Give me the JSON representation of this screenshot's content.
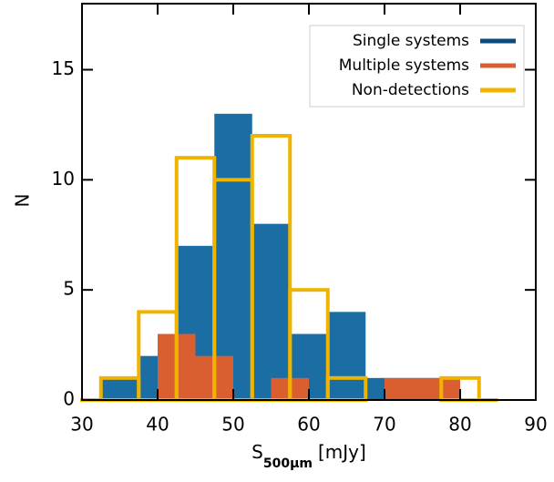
{
  "chart_data": {
    "type": "histogram",
    "xlabel": {
      "main": "S",
      "sub": "500μm",
      "unit": "[mJy]"
    },
    "ylabel": "N",
    "xlim": [
      30,
      90
    ],
    "ylim": [
      0,
      18
    ],
    "xticks": [
      30,
      40,
      50,
      60,
      70,
      80,
      90
    ],
    "yticks": [
      0,
      5,
      10,
      15
    ],
    "legend": "upper right",
    "series": [
      {
        "name": "Single systems",
        "color": "#1a6ea4",
        "legend_color": "#0b4a7c",
        "style": "filled",
        "bins": [
          32.5,
          37.5,
          42.5,
          47.5,
          52.5,
          57.5,
          62.5,
          67.5,
          72.5,
          77.5,
          82.5
        ],
        "values": [
          1,
          2,
          7,
          13,
          8,
          3,
          4,
          1,
          1,
          0
        ]
      },
      {
        "name": "Multiple systems",
        "color": "#d95f30",
        "legend_color": "#d95f30",
        "style": "filled",
        "bins": [
          40,
          45,
          50,
          55,
          60,
          65,
          70,
          75,
          80
        ],
        "values": [
          3,
          2,
          0,
          1,
          0,
          0,
          1,
          1
        ]
      },
      {
        "name": "Non-detections",
        "color": "#f0b400",
        "legend_color": "#f0b400",
        "style": "step",
        "bins": [
          32.5,
          37.5,
          42.5,
          47.5,
          52.5,
          57.5,
          62.5,
          67.5,
          72.5,
          77.5,
          82.5
        ],
        "values": [
          1,
          4,
          11,
          10,
          12,
          5,
          1,
          0,
          0,
          1
        ]
      }
    ]
  }
}
